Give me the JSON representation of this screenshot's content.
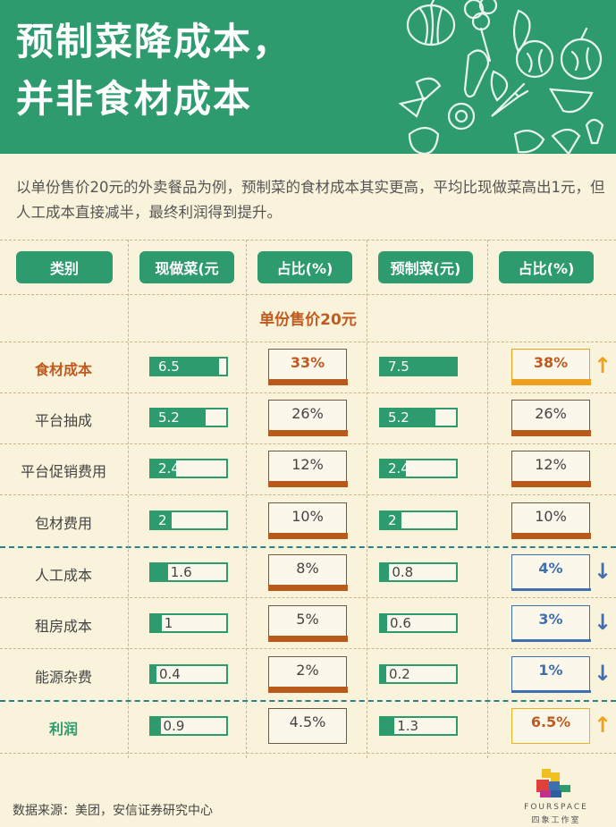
{
  "title_line1": "预制菜降成本，",
  "title_line2": "并非食材成本",
  "intro": "以单份售价20元的外卖餐品为例，预制菜的食材成本其实更高，平均比现做菜高出1元，但人工成本直接减半，最终利润得到提升。",
  "subheading": "单份售价20元",
  "source": "数据来源：美团，安信证券研究中心",
  "logo_en": "FOURSPACE",
  "logo_cn": "四象工作室",
  "colors": {
    "green": "#2d9b6e",
    "orange": "#f0a020",
    "blue": "#3f6fae",
    "rust": "#b85a1c",
    "bg": "#faf3dc"
  },
  "chart_data": {
    "type": "table",
    "headers": [
      "类别",
      "现做菜(元",
      "占比(%)",
      "预制菜(元)",
      "占比(%)"
    ],
    "max_value": 20,
    "rows": [
      {
        "category": "食材成本",
        "fresh": "6.5",
        "fresh_pct": "33%",
        "pre": "7.5",
        "pre_pct": "38%",
        "change": "up",
        "style": "hl"
      },
      {
        "category": "平台抽成",
        "fresh": "5.2",
        "fresh_pct": "26%",
        "pre": "5.2",
        "pre_pct": "26%",
        "change": "",
        "style": ""
      },
      {
        "category": "平台促销费用",
        "fresh": "2.4",
        "fresh_pct": "12%",
        "pre": "2.4",
        "pre_pct": "12%",
        "change": "",
        "style": ""
      },
      {
        "category": "包材费用",
        "fresh": "2",
        "fresh_pct": "10%",
        "pre": "2",
        "pre_pct": "10%",
        "change": "",
        "style": ""
      },
      {
        "category": "人工成本",
        "fresh": "1.6",
        "fresh_pct": "8%",
        "pre": "0.8",
        "pre_pct": "4%",
        "change": "down",
        "style": ""
      },
      {
        "category": "租房成本",
        "fresh": "1",
        "fresh_pct": "5%",
        "pre": "0.6",
        "pre_pct": "3%",
        "change": "down",
        "style": ""
      },
      {
        "category": "能源杂费",
        "fresh": "0.4",
        "fresh_pct": "2%",
        "pre": "0.2",
        "pre_pct": "1%",
        "change": "down",
        "style": ""
      },
      {
        "category": "利润",
        "fresh": "0.9",
        "fresh_pct": "4.5%",
        "pre": "1.3",
        "pre_pct": "6.5%",
        "change": "up",
        "style": "green"
      }
    ]
  }
}
